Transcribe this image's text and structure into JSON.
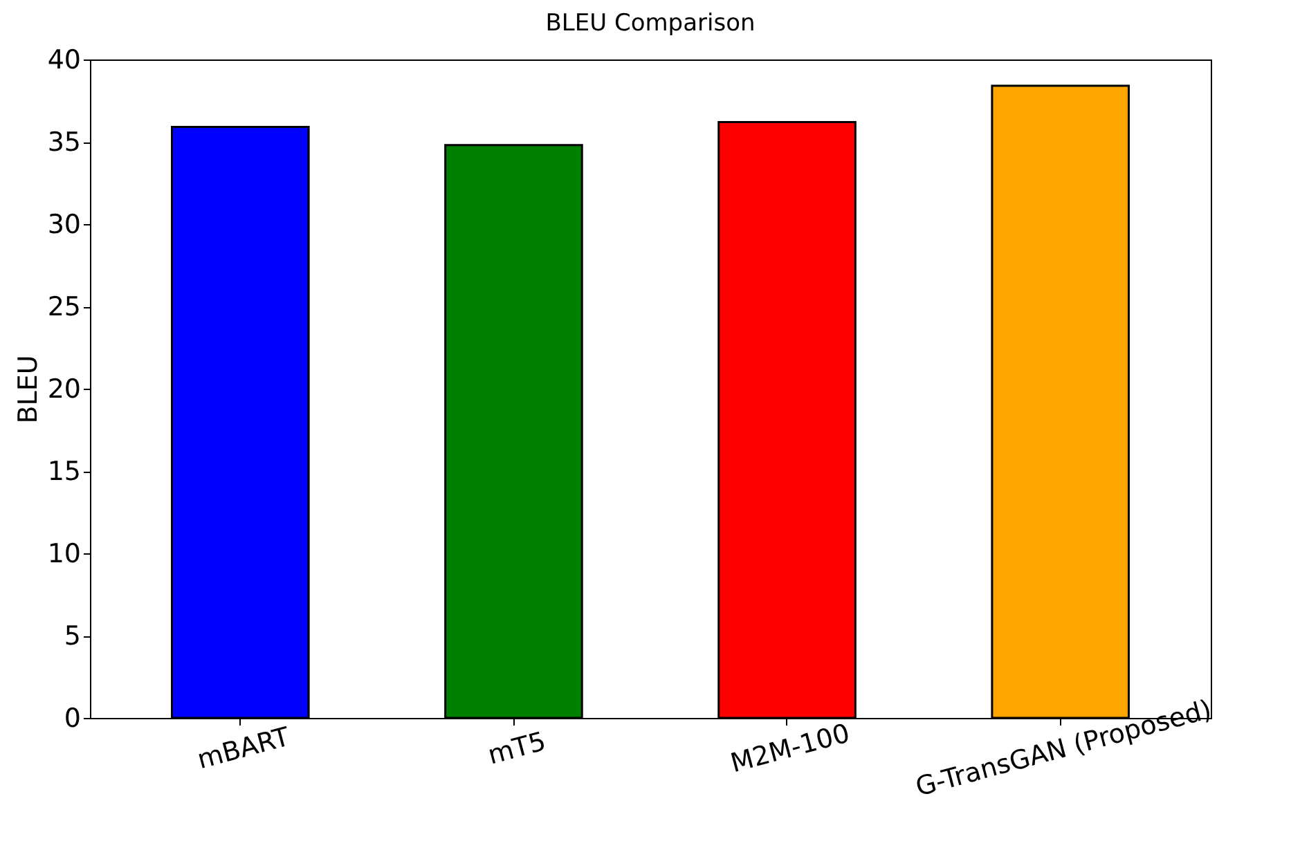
{
  "chart_data": {
    "type": "bar",
    "title": "BLEU Comparison",
    "ylabel": "BLEU",
    "categories": [
      "mBART",
      "mT5",
      "M2M-100",
      "G-TransGAN (Proposed)"
    ],
    "values": [
      35.9,
      34.8,
      36.2,
      38.4
    ],
    "colors": [
      "#0000ff",
      "#008000",
      "#ff0000",
      "#ffa500"
    ],
    "ylim": [
      0,
      40
    ],
    "yticks": [
      0,
      5,
      10,
      15,
      20,
      25,
      30,
      35,
      40
    ],
    "grid": false
  }
}
